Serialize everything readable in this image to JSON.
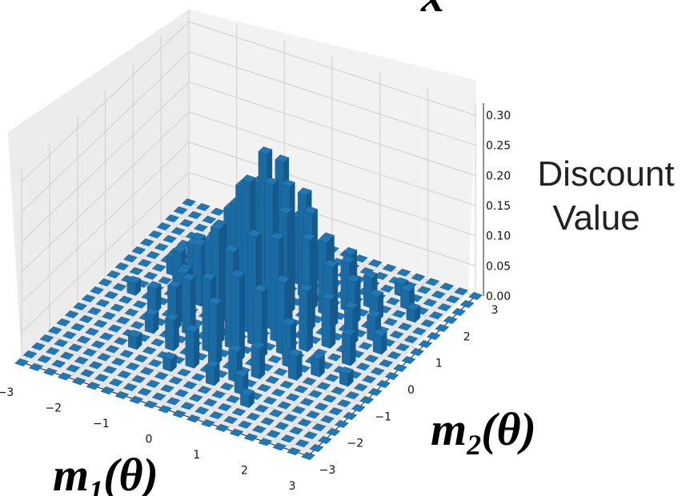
{
  "chart_data": {
    "type": "bar3d",
    "title": "",
    "xlabel": "m_1(θ)",
    "ylabel": "m_2(θ)",
    "zlabel_lines": [
      "Discount",
      "Value"
    ],
    "top_label_fragment": "x",
    "x_ticks": [
      "−3",
      "−2",
      "−1",
      "0",
      "1",
      "2",
      "3"
    ],
    "y_ticks": [
      "−3",
      "−2",
      "−1",
      "0",
      "1",
      "2",
      "3"
    ],
    "z_ticks": [
      "0.00",
      "0.05",
      "0.10",
      "0.15",
      "0.20",
      "0.25",
      "0.30"
    ],
    "xlim": [
      -3,
      3
    ],
    "ylim": [
      -3,
      3
    ],
    "zlim": [
      0,
      0.32
    ],
    "grid": true,
    "bar_color": "#1f77b4",
    "bar_edge_color": "#16507d",
    "grid_points": 21,
    "grid_step": 0.3,
    "bars": [
      {
        "x": -1.5,
        "y": 1.2,
        "z": 0.04
      },
      {
        "x": -1.2,
        "y": 1.5,
        "z": 0.05
      },
      {
        "x": -1.8,
        "y": 0.6,
        "z": 0.06
      },
      {
        "x": -1.5,
        "y": 0.3,
        "z": 0.05
      },
      {
        "x": -1.2,
        "y": 0.9,
        "z": 0.08
      },
      {
        "x": -0.9,
        "y": 1.5,
        "z": 0.07
      },
      {
        "x": -0.9,
        "y": 1.2,
        "z": 0.09
      },
      {
        "x": -0.6,
        "y": 1.8,
        "z": 0.06
      },
      {
        "x": -0.6,
        "y": 1.2,
        "z": 0.13
      },
      {
        "x": -0.3,
        "y": 1.5,
        "z": 0.16
      },
      {
        "x": -0.6,
        "y": 0.6,
        "z": 0.17
      },
      {
        "x": -0.3,
        "y": 0.9,
        "z": 0.2
      },
      {
        "x": 0.0,
        "y": 1.2,
        "z": 0.23
      },
      {
        "x": 0.0,
        "y": 0.6,
        "z": 0.27
      },
      {
        "x": -0.3,
        "y": 0.3,
        "z": 0.22
      },
      {
        "x": 0.3,
        "y": 0.9,
        "z": 0.21
      },
      {
        "x": 0.3,
        "y": 1.5,
        "z": 0.17
      },
      {
        "x": 0.6,
        "y": 1.2,
        "z": 0.16
      },
      {
        "x": 0.6,
        "y": 0.3,
        "z": 0.2
      },
      {
        "x": 0.0,
        "y": 0.0,
        "z": 0.25
      },
      {
        "x": -0.9,
        "y": 0.3,
        "z": 0.12
      },
      {
        "x": -0.6,
        "y": -0.3,
        "z": 0.15
      },
      {
        "x": -1.2,
        "y": -0.6,
        "z": 0.07
      },
      {
        "x": -1.5,
        "y": -0.9,
        "z": 0.03
      },
      {
        "x": -0.9,
        "y": -1.2,
        "z": 0.05
      },
      {
        "x": -0.3,
        "y": -0.6,
        "z": 0.19
      },
      {
        "x": 0.3,
        "y": -0.3,
        "z": 0.18
      },
      {
        "x": 0.3,
        "y": -0.9,
        "z": 0.14
      },
      {
        "x": 0.9,
        "y": 0.6,
        "z": 0.15
      },
      {
        "x": 0.9,
        "y": 1.2,
        "z": 0.12
      },
      {
        "x": 1.2,
        "y": 0.9,
        "z": 0.1
      },
      {
        "x": 1.2,
        "y": 1.5,
        "z": 0.08
      },
      {
        "x": 1.5,
        "y": 1.2,
        "z": 0.07
      },
      {
        "x": 1.5,
        "y": 1.8,
        "z": 0.05
      },
      {
        "x": 1.8,
        "y": 1.5,
        "z": 0.04
      },
      {
        "x": 0.9,
        "y": -0.3,
        "z": 0.12
      },
      {
        "x": 1.2,
        "y": 0.0,
        "z": 0.1
      },
      {
        "x": 1.5,
        "y": 0.3,
        "z": 0.08
      },
      {
        "x": 1.8,
        "y": 0.6,
        "z": 0.06
      },
      {
        "x": 2.1,
        "y": 0.9,
        "z": 0.04
      },
      {
        "x": 0.6,
        "y": -0.6,
        "z": 0.11
      },
      {
        "x": 0.0,
        "y": -1.2,
        "z": 0.1
      },
      {
        "x": -0.3,
        "y": -1.5,
        "z": 0.06
      },
      {
        "x": 0.6,
        "y": -1.5,
        "z": 0.05
      },
      {
        "x": 1.2,
        "y": -0.6,
        "z": 0.07
      },
      {
        "x": 1.5,
        "y": -0.9,
        "z": 0.04
      },
      {
        "x": 0.9,
        "y": -1.2,
        "z": 0.05
      },
      {
        "x": -1.8,
        "y": 1.5,
        "z": 0.03
      },
      {
        "x": -2.1,
        "y": 0.9,
        "z": 0.03
      },
      {
        "x": 2.4,
        "y": 1.8,
        "z": 0.02
      },
      {
        "x": 2.1,
        "y": 2.1,
        "z": 0.03
      },
      {
        "x": 1.8,
        "y": 2.4,
        "z": 0.02
      },
      {
        "x": 0.3,
        "y": 2.1,
        "z": 0.05
      },
      {
        "x": -0.3,
        "y": 2.1,
        "z": 0.04
      },
      {
        "x": 0.0,
        "y": 1.8,
        "z": 0.11
      },
      {
        "x": 0.6,
        "y": 1.8,
        "z": 0.09
      },
      {
        "x": 0.9,
        "y": 2.1,
        "z": 0.06
      },
      {
        "x": -1.2,
        "y": 0.3,
        "z": 0.1
      },
      {
        "x": -1.5,
        "y": 0.6,
        "z": 0.08
      },
      {
        "x": -0.6,
        "y": 0.0,
        "z": 0.16
      },
      {
        "x": 0.3,
        "y": 0.3,
        "z": 0.24
      },
      {
        "x": 0.6,
        "y": 0.0,
        "z": 0.17
      },
      {
        "x": -0.9,
        "y": 0.9,
        "z": 0.14
      },
      {
        "x": 0.0,
        "y": -0.6,
        "z": 0.16
      },
      {
        "x": -0.3,
        "y": -0.9,
        "z": 0.12
      },
      {
        "x": -0.9,
        "y": -0.6,
        "z": 0.09
      },
      {
        "x": -1.2,
        "y": -0.3,
        "z": 0.08
      },
      {
        "x": -1.8,
        "y": -0.3,
        "z": 0.04
      },
      {
        "x": 2.1,
        "y": 0.0,
        "z": 0.05
      },
      {
        "x": 2.4,
        "y": 0.6,
        "z": 0.03
      },
      {
        "x": 1.8,
        "y": -0.6,
        "z": 0.03
      },
      {
        "x": 0.3,
        "y": -1.8,
        "z": 0.03
      },
      {
        "x": -0.6,
        "y": -1.8,
        "z": 0.02
      },
      {
        "x": 0.9,
        "y": -1.8,
        "z": 0.03
      },
      {
        "x": -2.1,
        "y": 1.8,
        "z": 0.02
      },
      {
        "x": -2.4,
        "y": 0.0,
        "z": 0.02
      },
      {
        "x": 1.2,
        "y": -2.1,
        "z": 0.02
      },
      {
        "x": -1.5,
        "y": -1.5,
        "z": 0.02
      },
      {
        "x": 2.4,
        "y": -0.6,
        "z": 0.02
      },
      {
        "x": 0.0,
        "y": 2.4,
        "z": 0.02
      }
    ]
  }
}
